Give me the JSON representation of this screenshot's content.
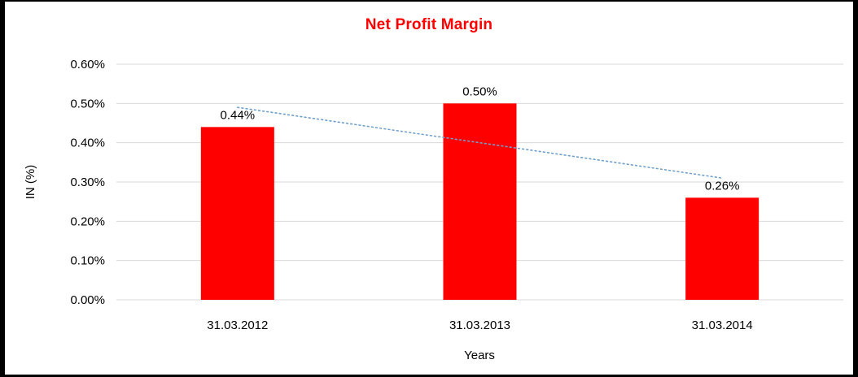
{
  "window": {
    "background": "#FFFFFF",
    "border_color": "#000000"
  },
  "chart_data": {
    "type": "bar",
    "title": "Net Profit Margin",
    "title_color": "#FF0000",
    "categories": [
      "31.03.2012",
      "31.03.2013",
      "31.03.2014"
    ],
    "values": [
      0.44,
      0.5,
      0.26
    ],
    "value_labels": [
      "0.44%",
      "0.50%",
      "0.26%"
    ],
    "xlabel": "Years",
    "ylabel": "IN (%)",
    "ylim": [
      0,
      0.6
    ],
    "ytick_step": 0.1,
    "ytick_labels": [
      "0.00%",
      "0.10%",
      "0.20%",
      "0.30%",
      "0.40%",
      "0.50%",
      "0.60%"
    ],
    "bar_color": "#FF0000",
    "gridline_color": "#D9D9D9",
    "text_color": "#000000",
    "grid": true,
    "legend": "none",
    "trendline": {
      "type": "linear",
      "style": "dotted",
      "color": "#709FCC",
      "start_value": 0.49,
      "end_value": 0.31
    }
  }
}
